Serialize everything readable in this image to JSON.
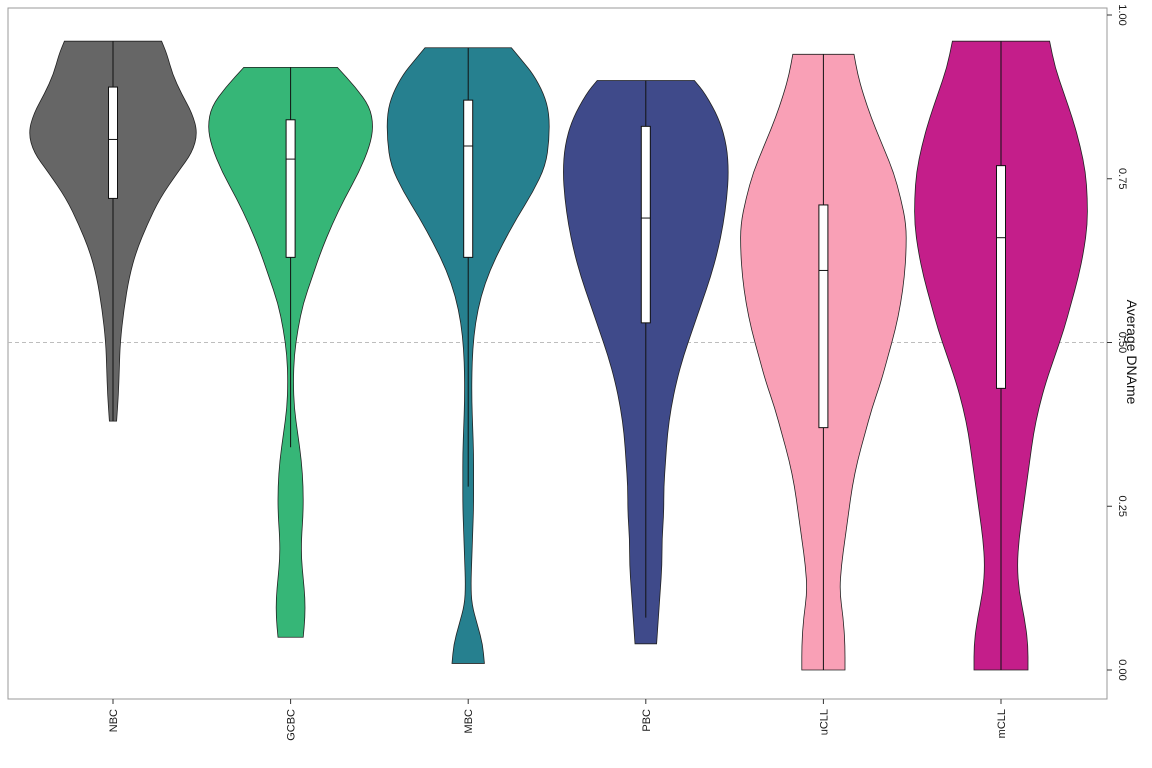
{
  "chart_data": {
    "type": "violin",
    "ylabel": "Average DNAme",
    "ylim": [
      0,
      1
    ],
    "y_ticks": [
      "0.00",
      "0.25",
      "0.50",
      "0.75",
      "1.00"
    ],
    "reference_line": 0.5,
    "grid": false,
    "categories": [
      "NBC",
      "GCBC",
      "MBC",
      "PBC",
      "uCLL",
      "mCLL"
    ],
    "series": [
      {
        "category": "NBC",
        "color": "#666666",
        "min": 0.38,
        "q1": 0.72,
        "median": 0.81,
        "q3": 0.89,
        "max": 0.96,
        "density": [
          [
            0.38,
            0.02
          ],
          [
            0.42,
            0.03
          ],
          [
            0.46,
            0.035
          ],
          [
            0.5,
            0.04
          ],
          [
            0.55,
            0.06
          ],
          [
            0.6,
            0.09
          ],
          [
            0.64,
            0.13
          ],
          [
            0.68,
            0.19
          ],
          [
            0.72,
            0.26
          ],
          [
            0.76,
            0.36
          ],
          [
            0.79,
            0.44
          ],
          [
            0.82,
            0.47
          ],
          [
            0.85,
            0.44
          ],
          [
            0.88,
            0.38
          ],
          [
            0.91,
            0.33
          ],
          [
            0.94,
            0.3
          ],
          [
            0.96,
            0.27
          ]
        ]
      },
      {
        "category": "GCBC",
        "color": "#36b677",
        "min": 0.34,
        "q1": 0.63,
        "median": 0.78,
        "q3": 0.84,
        "max": 0.92,
        "density": [
          [
            0.05,
            0.07
          ],
          [
            0.08,
            0.08
          ],
          [
            0.11,
            0.08
          ],
          [
            0.14,
            0.07
          ],
          [
            0.17,
            0.06
          ],
          [
            0.2,
            0.06
          ],
          [
            0.24,
            0.07
          ],
          [
            0.28,
            0.07
          ],
          [
            0.32,
            0.06
          ],
          [
            0.36,
            0.04
          ],
          [
            0.4,
            0.02
          ],
          [
            0.44,
            0.015
          ],
          [
            0.48,
            0.02
          ],
          [
            0.52,
            0.04
          ],
          [
            0.56,
            0.07
          ],
          [
            0.6,
            0.12
          ],
          [
            0.64,
            0.17
          ],
          [
            0.68,
            0.23
          ],
          [
            0.72,
            0.3
          ],
          [
            0.76,
            0.38
          ],
          [
            0.8,
            0.44
          ],
          [
            0.83,
            0.46
          ],
          [
            0.86,
            0.44
          ],
          [
            0.89,
            0.36
          ],
          [
            0.92,
            0.26
          ]
        ]
      },
      {
        "category": "MBC",
        "color": "#26808f",
        "min": 0.28,
        "q1": 0.63,
        "median": 0.8,
        "q3": 0.87,
        "max": 0.95,
        "density": [
          [
            0.01,
            0.09
          ],
          [
            0.04,
            0.08
          ],
          [
            0.07,
            0.05
          ],
          [
            0.1,
            0.02
          ],
          [
            0.13,
            0.015
          ],
          [
            0.17,
            0.02
          ],
          [
            0.21,
            0.025
          ],
          [
            0.25,
            0.03
          ],
          [
            0.29,
            0.03
          ],
          [
            0.33,
            0.03
          ],
          [
            0.37,
            0.025
          ],
          [
            0.41,
            0.02
          ],
          [
            0.45,
            0.02
          ],
          [
            0.49,
            0.025
          ],
          [
            0.53,
            0.04
          ],
          [
            0.57,
            0.07
          ],
          [
            0.61,
            0.12
          ],
          [
            0.65,
            0.19
          ],
          [
            0.69,
            0.27
          ],
          [
            0.73,
            0.36
          ],
          [
            0.77,
            0.43
          ],
          [
            0.81,
            0.45
          ],
          [
            0.85,
            0.45
          ],
          [
            0.88,
            0.42
          ],
          [
            0.91,
            0.36
          ],
          [
            0.93,
            0.3
          ],
          [
            0.95,
            0.24
          ]
        ]
      },
      {
        "category": "PBC",
        "color": "#3f4a8a",
        "min": 0.08,
        "q1": 0.53,
        "median": 0.69,
        "q3": 0.83,
        "max": 0.9,
        "density": [
          [
            0.04,
            0.06
          ],
          [
            0.08,
            0.07
          ],
          [
            0.12,
            0.08
          ],
          [
            0.16,
            0.09
          ],
          [
            0.2,
            0.09
          ],
          [
            0.24,
            0.1
          ],
          [
            0.28,
            0.1
          ],
          [
            0.32,
            0.11
          ],
          [
            0.36,
            0.12
          ],
          [
            0.4,
            0.14
          ],
          [
            0.44,
            0.17
          ],
          [
            0.48,
            0.21
          ],
          [
            0.52,
            0.26
          ],
          [
            0.56,
            0.31
          ],
          [
            0.6,
            0.36
          ],
          [
            0.64,
            0.4
          ],
          [
            0.68,
            0.43
          ],
          [
            0.72,
            0.45
          ],
          [
            0.76,
            0.46
          ],
          [
            0.8,
            0.45
          ],
          [
            0.84,
            0.41
          ],
          [
            0.88,
            0.33
          ],
          [
            0.9,
            0.27
          ]
        ]
      },
      {
        "category": "uCLL",
        "color": "#f9a0b6",
        "min": 0.0,
        "q1": 0.37,
        "median": 0.61,
        "q3": 0.71,
        "max": 0.94,
        "density": [
          [
            0.0,
            0.12
          ],
          [
            0.04,
            0.12
          ],
          [
            0.08,
            0.11
          ],
          [
            0.12,
            0.09
          ],
          [
            0.16,
            0.1
          ],
          [
            0.2,
            0.12
          ],
          [
            0.24,
            0.14
          ],
          [
            0.28,
            0.16
          ],
          [
            0.32,
            0.19
          ],
          [
            0.36,
            0.23
          ],
          [
            0.4,
            0.27
          ],
          [
            0.44,
            0.32
          ],
          [
            0.48,
            0.36
          ],
          [
            0.52,
            0.4
          ],
          [
            0.56,
            0.43
          ],
          [
            0.6,
            0.45
          ],
          [
            0.64,
            0.46
          ],
          [
            0.68,
            0.46
          ],
          [
            0.72,
            0.43
          ],
          [
            0.76,
            0.39
          ],
          [
            0.8,
            0.33
          ],
          [
            0.84,
            0.27
          ],
          [
            0.88,
            0.22
          ],
          [
            0.91,
            0.19
          ],
          [
            0.94,
            0.17
          ]
        ]
      },
      {
        "category": "mCLL",
        "color": "#c41e8a",
        "min": 0.0,
        "q1": 0.43,
        "median": 0.66,
        "q3": 0.77,
        "max": 0.96,
        "density": [
          [
            0.0,
            0.15
          ],
          [
            0.04,
            0.15
          ],
          [
            0.08,
            0.13
          ],
          [
            0.12,
            0.1
          ],
          [
            0.16,
            0.09
          ],
          [
            0.2,
            0.1
          ],
          [
            0.24,
            0.12
          ],
          [
            0.28,
            0.14
          ],
          [
            0.32,
            0.16
          ],
          [
            0.36,
            0.18
          ],
          [
            0.4,
            0.21
          ],
          [
            0.44,
            0.25
          ],
          [
            0.48,
            0.3
          ],
          [
            0.52,
            0.35
          ],
          [
            0.56,
            0.39
          ],
          [
            0.6,
            0.43
          ],
          [
            0.64,
            0.46
          ],
          [
            0.68,
            0.48
          ],
          [
            0.72,
            0.48
          ],
          [
            0.76,
            0.47
          ],
          [
            0.8,
            0.44
          ],
          [
            0.84,
            0.4
          ],
          [
            0.88,
            0.35
          ],
          [
            0.92,
            0.3
          ],
          [
            0.96,
            0.27
          ]
        ]
      }
    ]
  }
}
